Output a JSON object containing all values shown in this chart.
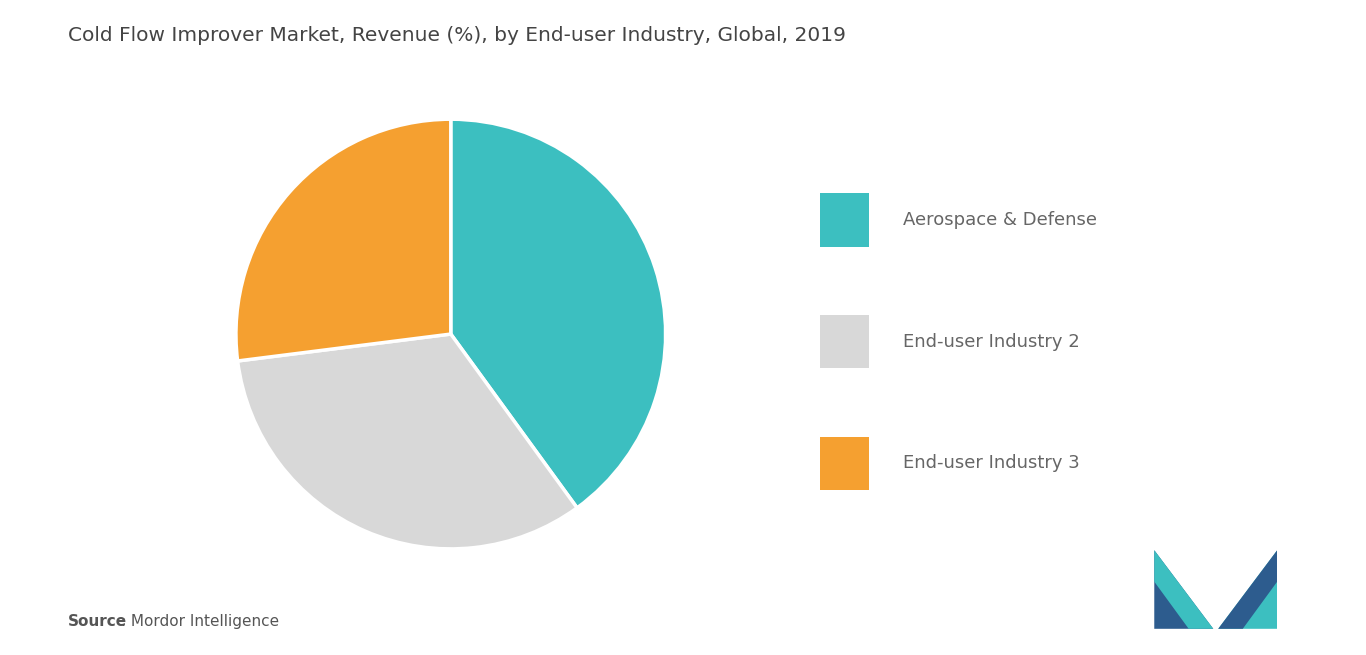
{
  "title": "Cold Flow Improver Market, Revenue (%), by End-user Industry, Global, 2019",
  "slices": [
    {
      "label": "Aerospace & Defense",
      "value": 40,
      "color": "#3CBFC0"
    },
    {
      "label": "End-user Industry 2",
      "value": 33,
      "color": "#D8D8D8"
    },
    {
      "label": "End-user Industry 3",
      "value": 27,
      "color": "#F5A030"
    }
  ],
  "start_angle": 90,
  "background_color": "#FFFFFF",
  "title_fontsize": 14.5,
  "legend_fontsize": 13,
  "source_bold": "Source",
  "source_rest": " : Mordor Intelligence",
  "logo_colors": {
    "dark_blue": "#2D5C8E",
    "teal": "#3CBFC0"
  }
}
